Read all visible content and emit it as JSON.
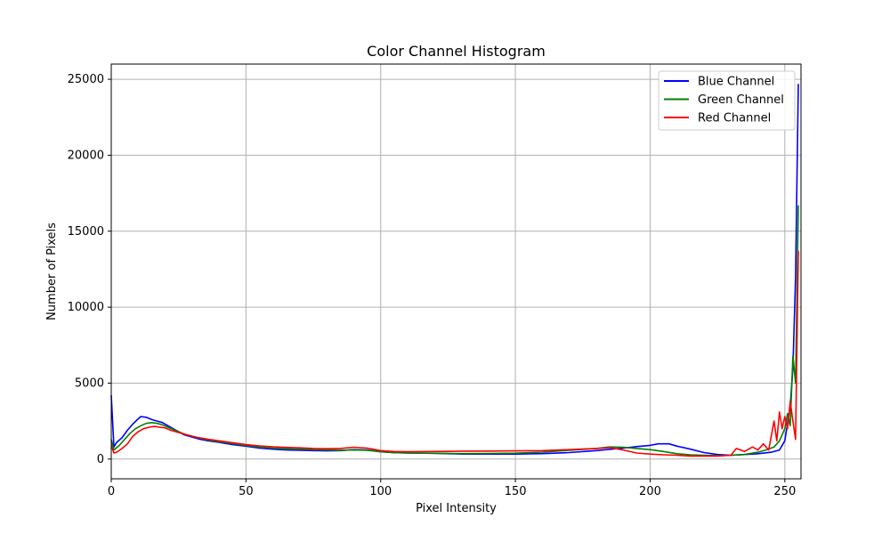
{
  "chart_data": {
    "type": "line",
    "title": "Color Channel Histogram",
    "xlabel": "Pixel Intensity",
    "ylabel": "Number of Pixels",
    "xlim": [
      0,
      256
    ],
    "ylim": [
      -1300,
      26000
    ],
    "xticks": [
      0,
      50,
      100,
      150,
      200,
      250
    ],
    "yticks": [
      0,
      5000,
      10000,
      15000,
      20000,
      25000
    ],
    "grid": true,
    "legend_position": "top-right",
    "series": [
      {
        "name": "Blue Channel",
        "color": "#0000ff",
        "points": [
          [
            0,
            4200
          ],
          [
            1,
            800
          ],
          [
            2,
            1100
          ],
          [
            4,
            1400
          ],
          [
            6,
            1900
          ],
          [
            8,
            2300
          ],
          [
            10,
            2650
          ],
          [
            11,
            2800
          ],
          [
            13,
            2750
          ],
          [
            15,
            2600
          ],
          [
            17,
            2500
          ],
          [
            19,
            2400
          ],
          [
            21,
            2200
          ],
          [
            23,
            2000
          ],
          [
            25,
            1800
          ],
          [
            27,
            1600
          ],
          [
            30,
            1450
          ],
          [
            33,
            1300
          ],
          [
            36,
            1200
          ],
          [
            40,
            1100
          ],
          [
            45,
            950
          ],
          [
            50,
            850
          ],
          [
            55,
            720
          ],
          [
            60,
            650
          ],
          [
            65,
            600
          ],
          [
            70,
            580
          ],
          [
            75,
            560
          ],
          [
            80,
            540
          ],
          [
            85,
            560
          ],
          [
            90,
            620
          ],
          [
            95,
            600
          ],
          [
            100,
            480
          ],
          [
            105,
            420
          ],
          [
            110,
            400
          ],
          [
            120,
            380
          ],
          [
            130,
            330
          ],
          [
            140,
            330
          ],
          [
            150,
            330
          ],
          [
            160,
            360
          ],
          [
            170,
            430
          ],
          [
            180,
            560
          ],
          [
            190,
            720
          ],
          [
            195,
            820
          ],
          [
            200,
            900
          ],
          [
            203,
            1000
          ],
          [
            207,
            1000
          ],
          [
            210,
            850
          ],
          [
            215,
            650
          ],
          [
            220,
            430
          ],
          [
            225,
            300
          ],
          [
            230,
            250
          ],
          [
            235,
            300
          ],
          [
            240,
            350
          ],
          [
            245,
            450
          ],
          [
            248,
            600
          ],
          [
            250,
            1200
          ],
          [
            252,
            3500
          ],
          [
            253,
            6000
          ],
          [
            254,
            12000
          ],
          [
            255,
            24700
          ]
        ]
      },
      {
        "name": "Green Channel",
        "color": "#008000",
        "points": [
          [
            0,
            1300
          ],
          [
            1,
            600
          ],
          [
            3,
            900
          ],
          [
            5,
            1300
          ],
          [
            7,
            1700
          ],
          [
            9,
            2000
          ],
          [
            11,
            2200
          ],
          [
            13,
            2350
          ],
          [
            15,
            2400
          ],
          [
            17,
            2350
          ],
          [
            19,
            2250
          ],
          [
            21,
            2100
          ],
          [
            23,
            1950
          ],
          [
            25,
            1800
          ],
          [
            27,
            1650
          ],
          [
            30,
            1500
          ],
          [
            33,
            1380
          ],
          [
            36,
            1250
          ],
          [
            40,
            1150
          ],
          [
            45,
            1020
          ],
          [
            50,
            900
          ],
          [
            55,
            800
          ],
          [
            60,
            720
          ],
          [
            65,
            680
          ],
          [
            70,
            650
          ],
          [
            75,
            620
          ],
          [
            80,
            600
          ],
          [
            85,
            580
          ],
          [
            90,
            600
          ],
          [
            95,
            580
          ],
          [
            100,
            480
          ],
          [
            105,
            420
          ],
          [
            110,
            400
          ],
          [
            120,
            380
          ],
          [
            130,
            360
          ],
          [
            140,
            370
          ],
          [
            150,
            390
          ],
          [
            160,
            460
          ],
          [
            170,
            580
          ],
          [
            180,
            700
          ],
          [
            185,
            800
          ],
          [
            190,
            780
          ],
          [
            195,
            700
          ],
          [
            200,
            620
          ],
          [
            205,
            500
          ],
          [
            210,
            350
          ],
          [
            215,
            280
          ],
          [
            220,
            250
          ],
          [
            225,
            230
          ],
          [
            230,
            250
          ],
          [
            235,
            300
          ],
          [
            240,
            450
          ],
          [
            243,
            600
          ],
          [
            246,
            800
          ],
          [
            248,
            1200
          ],
          [
            250,
            2000
          ],
          [
            251,
            3000
          ],
          [
            252,
            2200
          ],
          [
            253,
            6800
          ],
          [
            254,
            5000
          ],
          [
            255,
            16700
          ]
        ]
      },
      {
        "name": "Red Channel",
        "color": "#ff0000",
        "points": [
          [
            0,
            900
          ],
          [
            1,
            400
          ],
          [
            2,
            450
          ],
          [
            4,
            700
          ],
          [
            6,
            1000
          ],
          [
            8,
            1500
          ],
          [
            10,
            1800
          ],
          [
            12,
            2000
          ],
          [
            14,
            2100
          ],
          [
            16,
            2150
          ],
          [
            18,
            2100
          ],
          [
            20,
            2050
          ],
          [
            22,
            1900
          ],
          [
            24,
            1800
          ],
          [
            26,
            1700
          ],
          [
            29,
            1550
          ],
          [
            32,
            1420
          ],
          [
            36,
            1300
          ],
          [
            40,
            1200
          ],
          [
            45,
            1080
          ],
          [
            50,
            950
          ],
          [
            55,
            870
          ],
          [
            60,
            810
          ],
          [
            65,
            770
          ],
          [
            70,
            740
          ],
          [
            75,
            700
          ],
          [
            80,
            680
          ],
          [
            85,
            700
          ],
          [
            90,
            780
          ],
          [
            95,
            720
          ],
          [
            100,
            560
          ],
          [
            105,
            500
          ],
          [
            110,
            480
          ],
          [
            120,
            500
          ],
          [
            130,
            520
          ],
          [
            140,
            530
          ],
          [
            150,
            540
          ],
          [
            160,
            560
          ],
          [
            170,
            620
          ],
          [
            180,
            700
          ],
          [
            185,
            750
          ],
          [
            190,
            600
          ],
          [
            195,
            400
          ],
          [
            200,
            330
          ],
          [
            205,
            280
          ],
          [
            210,
            250
          ],
          [
            215,
            200
          ],
          [
            220,
            200
          ],
          [
            225,
            200
          ],
          [
            230,
            250
          ],
          [
            232,
            700
          ],
          [
            235,
            500
          ],
          [
            238,
            800
          ],
          [
            240,
            600
          ],
          [
            242,
            1000
          ],
          [
            244,
            600
          ],
          [
            246,
            2500
          ],
          [
            247,
            1200
          ],
          [
            248,
            3100
          ],
          [
            249,
            2000
          ],
          [
            250,
            2800
          ],
          [
            251,
            2000
          ],
          [
            252,
            3800
          ],
          [
            253,
            2500
          ],
          [
            254,
            1300
          ],
          [
            255,
            13700
          ]
        ]
      }
    ]
  }
}
